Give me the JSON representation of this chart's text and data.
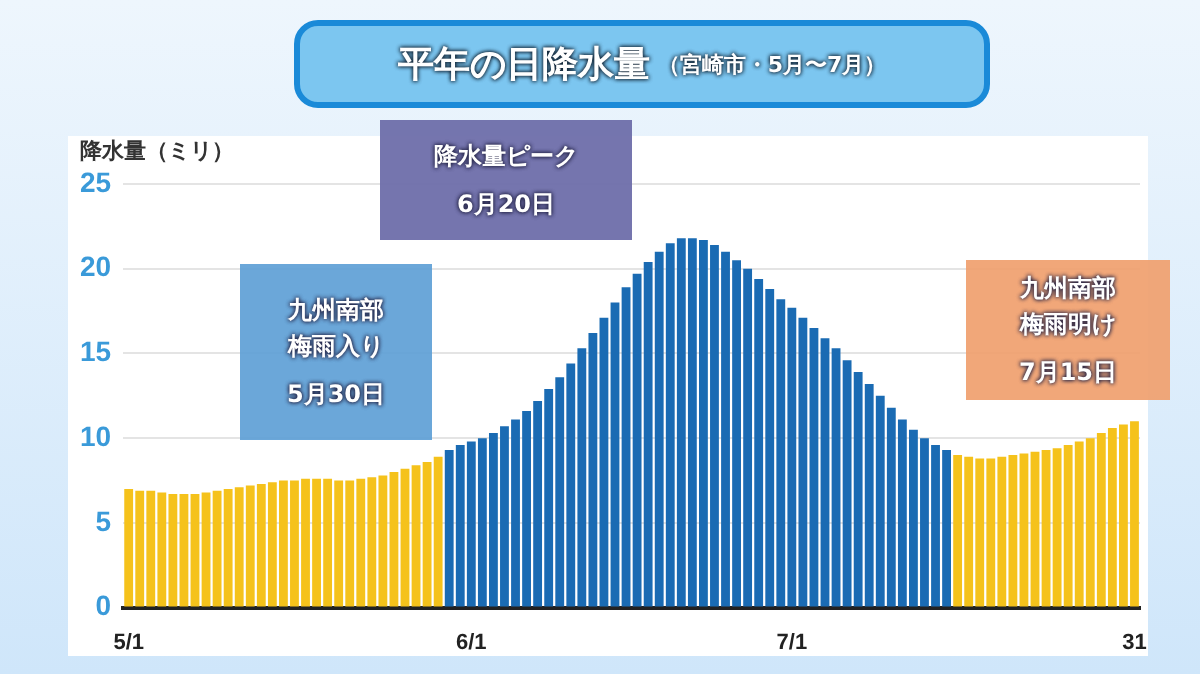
{
  "chart_data": {
    "type": "bar",
    "title": "平年の日降水量",
    "subtitle": "（宮崎市・5月〜7月）",
    "ylabel": "降水量（ミリ）",
    "categories": [
      "5/1",
      null,
      null,
      null,
      null,
      null,
      null,
      null,
      null,
      null,
      null,
      null,
      null,
      null,
      null,
      null,
      null,
      null,
      null,
      null,
      null,
      null,
      null,
      null,
      null,
      null,
      null,
      null,
      null,
      null,
      null,
      "6/1",
      null,
      null,
      null,
      null,
      null,
      null,
      null,
      null,
      null,
      null,
      null,
      null,
      null,
      null,
      null,
      null,
      null,
      null,
      null,
      null,
      null,
      null,
      null,
      null,
      null,
      null,
      null,
      null,
      "7/1",
      null,
      null,
      null,
      null,
      null,
      null,
      null,
      null,
      null,
      null,
      null,
      null,
      null,
      null,
      null,
      null,
      null,
      null,
      null,
      null,
      null,
      null,
      null,
      null,
      null,
      null,
      null,
      null,
      null,
      null,
      "31"
    ],
    "values": [
      7.0,
      6.9,
      6.9,
      6.8,
      6.7,
      6.7,
      6.7,
      6.8,
      6.9,
      7.0,
      7.1,
      7.2,
      7.3,
      7.4,
      7.5,
      7.5,
      7.6,
      7.6,
      7.6,
      7.5,
      7.5,
      7.6,
      7.7,
      7.8,
      8.0,
      8.2,
      8.4,
      8.6,
      8.9,
      9.3,
      9.6,
      9.8,
      10.0,
      10.3,
      10.7,
      11.1,
      11.6,
      12.2,
      12.9,
      13.6,
      14.4,
      15.3,
      16.2,
      17.1,
      18.0,
      18.9,
      19.7,
      20.4,
      21.0,
      21.5,
      21.8,
      21.8,
      21.7,
      21.4,
      21.0,
      20.5,
      20.0,
      19.4,
      18.8,
      18.2,
      17.7,
      17.1,
      16.5,
      15.9,
      15.3,
      14.6,
      13.9,
      13.2,
      12.5,
      11.8,
      11.1,
      10.5,
      10.0,
      9.6,
      9.3,
      9.0,
      8.9,
      8.8,
      8.8,
      8.9,
      9.0,
      9.1,
      9.2,
      9.3,
      9.4,
      9.6,
      9.8,
      10.0,
      10.3,
      10.6,
      10.8,
      11.0
    ],
    "colors": [
      "#f5c21b",
      "#f5c21b",
      "#f5c21b",
      "#f5c21b",
      "#f5c21b",
      "#f5c21b",
      "#f5c21b",
      "#f5c21b",
      "#f5c21b",
      "#f5c21b",
      "#f5c21b",
      "#f5c21b",
      "#f5c21b",
      "#f5c21b",
      "#f5c21b",
      "#f5c21b",
      "#f5c21b",
      "#f5c21b",
      "#f5c21b",
      "#f5c21b",
      "#f5c21b",
      "#f5c21b",
      "#f5c21b",
      "#f5c21b",
      "#f5c21b",
      "#f5c21b",
      "#f5c21b",
      "#f5c21b",
      "#f5c21b",
      "#1a6bb3",
      "#1a6bb3",
      "#1a6bb3",
      "#1a6bb3",
      "#1a6bb3",
      "#1a6bb3",
      "#1a6bb3",
      "#1a6bb3",
      "#1a6bb3",
      "#1a6bb3",
      "#1a6bb3",
      "#1a6bb3",
      "#1a6bb3",
      "#1a6bb3",
      "#1a6bb3",
      "#1a6bb3",
      "#1a6bb3",
      "#1a6bb3",
      "#1a6bb3",
      "#1a6bb3",
      "#1a6bb3",
      "#1a6bb3",
      "#1a6bb3",
      "#1a6bb3",
      "#1a6bb3",
      "#1a6bb3",
      "#1a6bb3",
      "#1a6bb3",
      "#1a6bb3",
      "#1a6bb3",
      "#1a6bb3",
      "#1a6bb3",
      "#1a6bb3",
      "#1a6bb3",
      "#1a6bb3",
      "#1a6bb3",
      "#1a6bb3",
      "#1a6bb3",
      "#1a6bb3",
      "#1a6bb3",
      "#1a6bb3",
      "#1a6bb3",
      "#1a6bb3",
      "#1a6bb3",
      "#1a6bb3",
      "#1a6bb3",
      "#f5c21b",
      "#f5c21b",
      "#f5c21b",
      "#f5c21b",
      "#f5c21b",
      "#f5c21b",
      "#f5c21b",
      "#f5c21b",
      "#f5c21b",
      "#f5c21b",
      "#f5c21b",
      "#f5c21b",
      "#f5c21b",
      "#f5c21b",
      "#f5c21b",
      "#f5c21b",
      "#f5c21b"
    ],
    "ylim": [
      0,
      25
    ],
    "yticks": [
      0,
      5,
      10,
      15,
      20,
      25
    ],
    "grid": "y",
    "annotations": [
      "九州南部梅雨入り",
      "5月30日",
      "降水量ピーク",
      "6月20日",
      "九州南部梅雨明け",
      "7月15日"
    ]
  }
}
